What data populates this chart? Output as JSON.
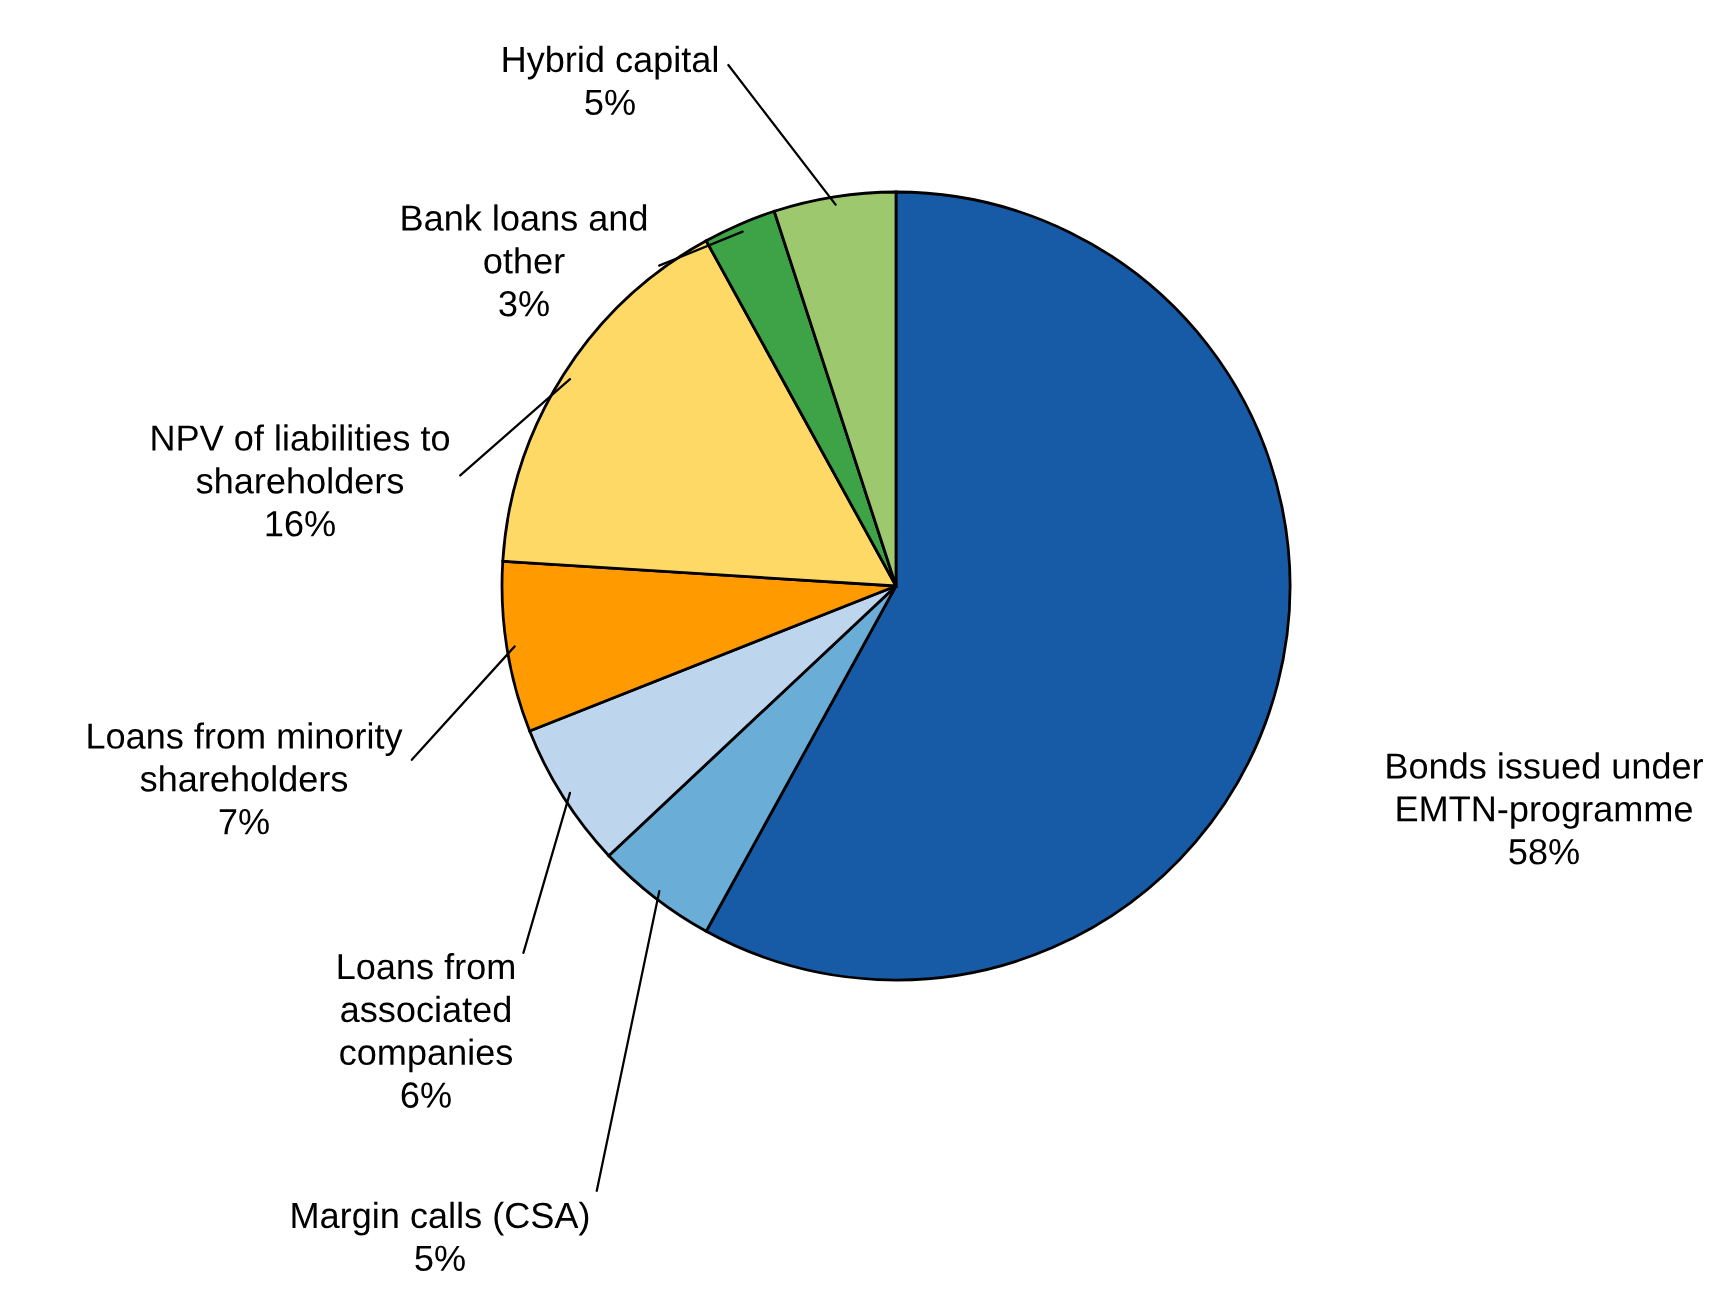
{
  "chart_data": {
    "type": "pie",
    "categories": [
      "Bonds issued under\nEMTN-programme",
      "Margin calls (CSA)",
      "Loans from\nassociated\ncompanies",
      "Loans from minority\nshareholders",
      "NPV of liabilities to\nshareholders",
      "Bank loans and\nother",
      "Hybrid capital"
    ],
    "values": [
      58,
      5,
      6,
      7,
      16,
      3,
      5
    ],
    "value_labels": [
      "58%",
      "5%",
      "6%",
      "7%",
      "16%",
      "3%",
      "5%"
    ],
    "colors": [
      "#175aa6",
      "#6aaed8",
      "#bdd6ee",
      "#ff9b00",
      "#ffd966",
      "#3ea346",
      "#9dc86e"
    ],
    "legend": false
  }
}
